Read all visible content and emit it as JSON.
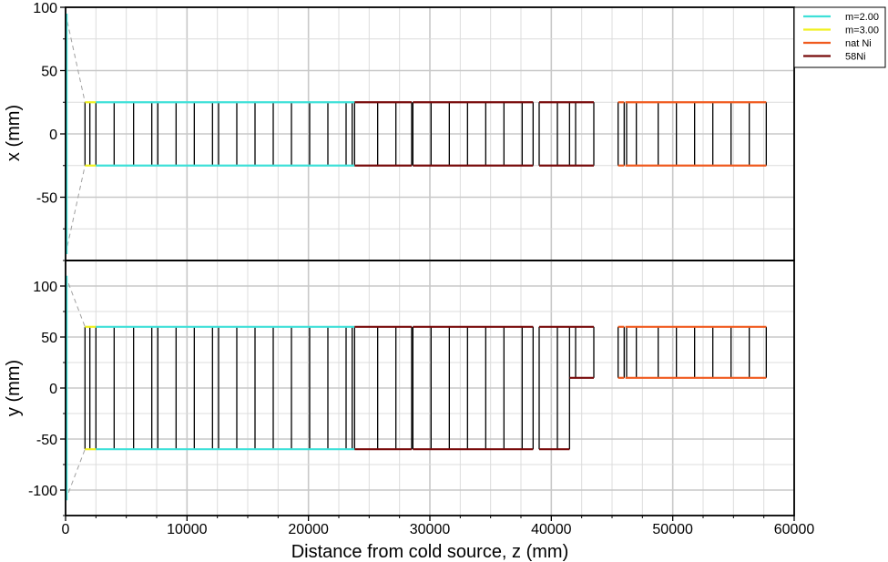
{
  "chart_data": {
    "type": "line",
    "xlabel": "Distance from cold source, z (mm)",
    "xlim": [
      0,
      60000
    ],
    "x_ticks": [
      "0",
      "10000",
      "20000",
      "30000",
      "40000",
      "50000",
      "60000"
    ],
    "grid": true,
    "legend_position": "top-right",
    "legend": [
      {
        "label": "m=2.00",
        "color": "#3ee0d8"
      },
      {
        "label": "m=3.00",
        "color": "#f0f020"
      },
      {
        "label": "nat Ni",
        "color": "#f05a1e"
      },
      {
        "label": "58Ni",
        "color": "#780a0a"
      }
    ],
    "panels": [
      {
        "ylabel": "x (mm)",
        "ylim": [
          -100,
          100
        ],
        "y_ticks": [
          "100",
          "50",
          "0",
          "-50"
        ],
        "y_tick_values": [
          100,
          50,
          0,
          -50
        ],
        "source_width_y": 95,
        "funnel_end": {
          "z": 1600,
          "y": 25
        },
        "series": [
          {
            "coating": "m=3.00",
            "color": "#f0f020",
            "segments": [
              {
                "z0": 1600,
                "z1": 2500,
                "top": 25,
                "bottom": -25
              }
            ]
          },
          {
            "coating": "m=2.00",
            "color": "#3ee0d8",
            "segments": [
              {
                "z0": 2500,
                "z1": 23800,
                "top": 25,
                "bottom": -25
              }
            ]
          },
          {
            "coating": "58Ni",
            "color": "#780a0a",
            "segments": [
              {
                "z0": 23800,
                "z1": 28500,
                "top": 25,
                "bottom": -25
              },
              {
                "z0": 28600,
                "z1": 38500,
                "top": 25,
                "bottom": -25
              },
              {
                "z0": 39000,
                "z1": 43500,
                "top": 25,
                "bottom": -25
              }
            ]
          },
          {
            "coating": "nat Ni",
            "color": "#f05a1e",
            "segments": [
              {
                "z0": 45500,
                "z1": 46000,
                "top": 25,
                "bottom": -25
              },
              {
                "z0": 46100,
                "z1": 57700,
                "top": 25,
                "bottom": -25
              }
            ]
          }
        ],
        "dividers": [
          1600,
          2000,
          2500,
          4000,
          5600,
          7100,
          7600,
          9100,
          10600,
          12100,
          12600,
          14100,
          15600,
          17100,
          18600,
          20100,
          21600,
          23100,
          23600,
          23800,
          25700,
          27200,
          28500,
          28600,
          30100,
          31600,
          33100,
          34600,
          36100,
          37600,
          38500,
          39000,
          40500,
          41500,
          42000,
          43500,
          45500,
          46000,
          46200,
          47000,
          48800,
          50300,
          51800,
          53300,
          54800,
          56300,
          57700
        ]
      },
      {
        "ylabel": "y (mm)",
        "ylim": [
          -125,
          125
        ],
        "y_ticks": [
          "100",
          "50",
          "0",
          "-50",
          "-100"
        ],
        "y_tick_values": [
          100,
          50,
          0,
          -50,
          -100
        ],
        "source_width_y": 110,
        "funnel_end": {
          "z": 1600,
          "y": 60
        },
        "series": [
          {
            "coating": "m=3.00",
            "color": "#f0f020",
            "segments": [
              {
                "z0": 1600,
                "z1": 2500,
                "top": 60,
                "bottom": -60
              }
            ]
          },
          {
            "coating": "m=2.00",
            "color": "#3ee0d8",
            "segments": [
              {
                "z0": 2500,
                "z1": 23800,
                "top": 60,
                "bottom": -60
              }
            ]
          },
          {
            "coating": "58Ni",
            "color": "#780a0a",
            "segments": [
              {
                "z0": 23800,
                "z1": 28500,
                "top": 60,
                "bottom": -60
              },
              {
                "z0": 28600,
                "z1": 38500,
                "top": 60,
                "bottom": -60
              },
              {
                "z0": 39000,
                "z1": 41500,
                "top": 60,
                "bottom": -60
              },
              {
                "z0": 41500,
                "z1": 43500,
                "top": 60,
                "bottom": 10
              }
            ]
          },
          {
            "coating": "nat Ni",
            "color": "#f05a1e",
            "segments": [
              {
                "z0": 45500,
                "z1": 46000,
                "top": 60,
                "bottom": 10
              },
              {
                "z0": 46100,
                "z1": 57700,
                "top": 60,
                "bottom": 10
              }
            ]
          }
        ],
        "dividers": [
          {
            "z": 1600,
            "top": 60,
            "bottom": -60
          },
          {
            "z": 2000,
            "top": 60,
            "bottom": -60
          },
          {
            "z": 2500,
            "top": 60,
            "bottom": -60
          },
          {
            "z": 4000,
            "top": 60,
            "bottom": -60
          },
          {
            "z": 5600,
            "top": 60,
            "bottom": -60
          },
          {
            "z": 7100,
            "top": 60,
            "bottom": -60
          },
          {
            "z": 7600,
            "top": 60,
            "bottom": -60
          },
          {
            "z": 9100,
            "top": 60,
            "bottom": -60
          },
          {
            "z": 10600,
            "top": 60,
            "bottom": -60
          },
          {
            "z": 12100,
            "top": 60,
            "bottom": -60
          },
          {
            "z": 12600,
            "top": 60,
            "bottom": -60
          },
          {
            "z": 14100,
            "top": 60,
            "bottom": -60
          },
          {
            "z": 15600,
            "top": 60,
            "bottom": -60
          },
          {
            "z": 17100,
            "top": 60,
            "bottom": -60
          },
          {
            "z": 18600,
            "top": 60,
            "bottom": -60
          },
          {
            "z": 20100,
            "top": 60,
            "bottom": -60
          },
          {
            "z": 21600,
            "top": 60,
            "bottom": -60
          },
          {
            "z": 23100,
            "top": 60,
            "bottom": -60
          },
          {
            "z": 23600,
            "top": 60,
            "bottom": -60
          },
          {
            "z": 23800,
            "top": 60,
            "bottom": -60
          },
          {
            "z": 25700,
            "top": 60,
            "bottom": -60
          },
          {
            "z": 27200,
            "top": 60,
            "bottom": -60
          },
          {
            "z": 28500,
            "top": 60,
            "bottom": -60
          },
          {
            "z": 28600,
            "top": 60,
            "bottom": -60
          },
          {
            "z": 30100,
            "top": 60,
            "bottom": -60
          },
          {
            "z": 31600,
            "top": 60,
            "bottom": -60
          },
          {
            "z": 33100,
            "top": 60,
            "bottom": -60
          },
          {
            "z": 34600,
            "top": 60,
            "bottom": -60
          },
          {
            "z": 36100,
            "top": 60,
            "bottom": -60
          },
          {
            "z": 37600,
            "top": 60,
            "bottom": -60
          },
          {
            "z": 38500,
            "top": 60,
            "bottom": -60
          },
          {
            "z": 39000,
            "top": 60,
            "bottom": -60
          },
          {
            "z": 40500,
            "top": 60,
            "bottom": -60
          },
          {
            "z": 41500,
            "top": 60,
            "bottom": -60
          },
          {
            "z": 42000,
            "top": 60,
            "bottom": 10
          },
          {
            "z": 43500,
            "top": 60,
            "bottom": 10
          },
          {
            "z": 45500,
            "top": 60,
            "bottom": 10
          },
          {
            "z": 46000,
            "top": 60,
            "bottom": 10
          },
          {
            "z": 46200,
            "top": 60,
            "bottom": 10
          },
          {
            "z": 47000,
            "top": 60,
            "bottom": 10
          },
          {
            "z": 48800,
            "top": 60,
            "bottom": 10
          },
          {
            "z": 50300,
            "top": 60,
            "bottom": 10
          },
          {
            "z": 51800,
            "top": 60,
            "bottom": 10
          },
          {
            "z": 53300,
            "top": 60,
            "bottom": 10
          },
          {
            "z": 54800,
            "top": 60,
            "bottom": 10
          },
          {
            "z": 56300,
            "top": 60,
            "bottom": 10
          },
          {
            "z": 57700,
            "top": 60,
            "bottom": 10
          }
        ]
      }
    ]
  }
}
